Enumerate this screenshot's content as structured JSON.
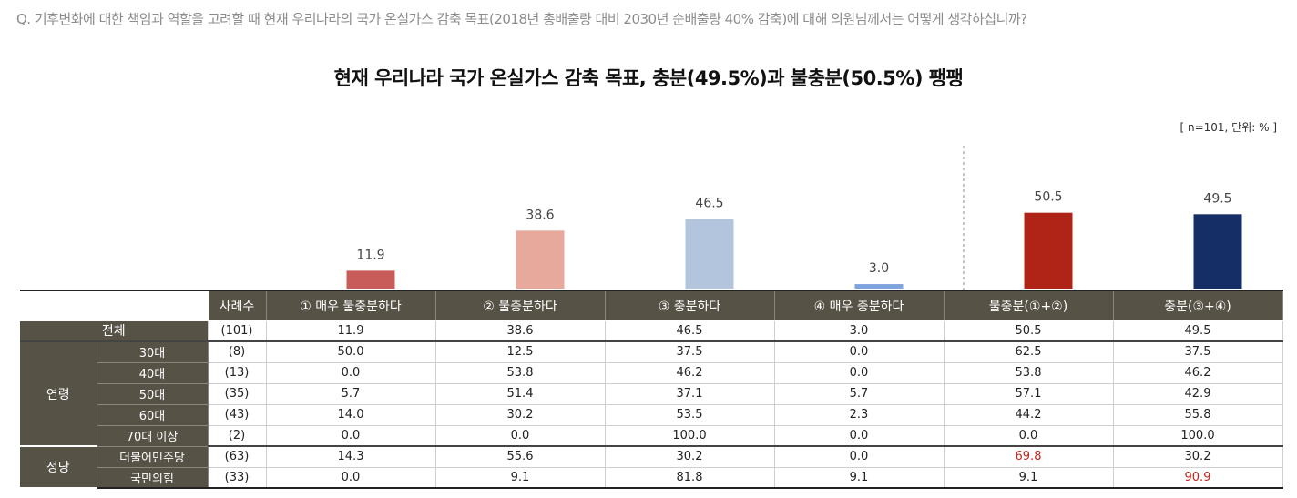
{
  "question": "Q. 기후변화에 대한 책임과 역할을 고려할 때 현재 우리나라의 국가 온실가스 감축 목표(2018년 총배출량 대비 2030년 순배출량 40% 감축)에 대해 의원님께서는 어떻게 생각하십니까?",
  "title": "현재 우리나라 국가 온실가스 감축 목표, 충분(49.5%)과 불충분(50.5%) 팽팽",
  "note": "[ n=101, 단위: % ]",
  "chart_data": {
    "type": "bar",
    "categories": [
      "① 매우 불충분하다",
      "② 불충분하다",
      "③ 충분하다",
      "④ 매우 충분하다",
      "불충분(①+②)",
      "충분(③+④)"
    ],
    "values": [
      11.9,
      38.6,
      46.5,
      3.0,
      50.5,
      49.5
    ],
    "value_labels": [
      "11.9",
      "38.6",
      "46.5",
      "3.0",
      "50.5",
      "49.5"
    ],
    "colors": [
      "#c85c5a",
      "#e8a99d",
      "#b3c5dc",
      "#7fa3dc",
      "#b02418",
      "#152e66"
    ],
    "ylim": [
      0,
      60
    ],
    "separator_after_index": 3
  },
  "table": {
    "header": [
      "사례수",
      "① 매우 불충분하다",
      "② 불충분하다",
      "③ 충분하다",
      "④ 매우 충분하다",
      "불충분(①+②)",
      "충분(③+④)"
    ],
    "total": {
      "label": "전체",
      "n": "(101)",
      "values": [
        "11.9",
        "38.6",
        "46.5",
        "3.0",
        "50.5",
        "49.5"
      ]
    },
    "groups": [
      {
        "label": "연령",
        "rows": [
          {
            "label": "30대",
            "n": "(8)",
            "values": [
              "50.0",
              "12.5",
              "37.5",
              "0.0",
              "62.5",
              "37.5"
            ]
          },
          {
            "label": "40대",
            "n": "(13)",
            "values": [
              "0.0",
              "53.8",
              "46.2",
              "0.0",
              "53.8",
              "46.2"
            ]
          },
          {
            "label": "50대",
            "n": "(35)",
            "values": [
              "5.7",
              "51.4",
              "37.1",
              "5.7",
              "57.1",
              "42.9"
            ]
          },
          {
            "label": "60대",
            "n": "(43)",
            "values": [
              "14.0",
              "30.2",
              "53.5",
              "2.3",
              "44.2",
              "55.8"
            ]
          },
          {
            "label": "70대 이상",
            "n": "(2)",
            "values": [
              "0.0",
              "0.0",
              "100.0",
              "0.0",
              "0.0",
              "100.0"
            ]
          }
        ]
      },
      {
        "label": "정당",
        "rows": [
          {
            "label": "더불어민주당",
            "n": "(63)",
            "values": [
              "14.3",
              "55.6",
              "30.2",
              "0.0",
              "69.8",
              "30.2"
            ],
            "highlight_col": 4
          },
          {
            "label": "국민의힘",
            "n": "(33)",
            "values": [
              "0.0",
              "9.1",
              "81.8",
              "9.1",
              "9.1",
              "90.9"
            ],
            "highlight_col": 5
          }
        ]
      }
    ]
  }
}
